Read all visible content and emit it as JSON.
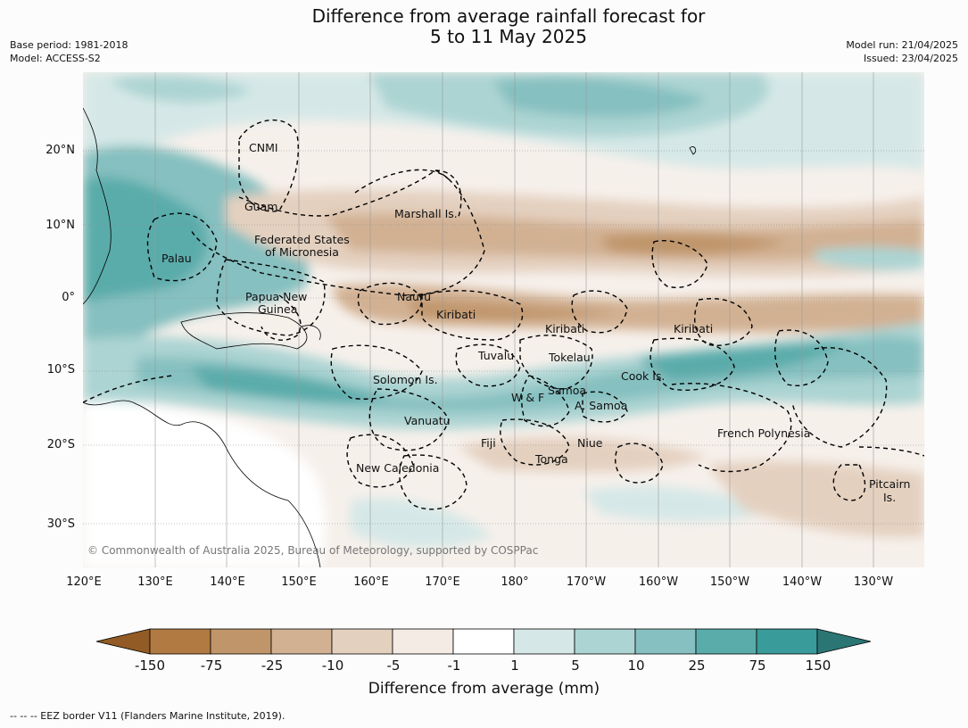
{
  "title_line1": "Difference from average rainfall forecast for",
  "title_line2": "5 to 11 May 2025",
  "base_period": "Base period: 1981-2018",
  "model": "Model: ACCESS-S2",
  "model_run": "Model run: 21/04/2025",
  "issued": "Issued: 23/04/2025",
  "lat_labels": [
    "20°N",
    "10°N",
    "0°",
    "10°S",
    "20°S",
    "30°S"
  ],
  "lon_labels": [
    "120°E",
    "130°E",
    "140°E",
    "150°E",
    "160°E",
    "170°E",
    "180°",
    "170°W",
    "160°W",
    "150°W",
    "140°W",
    "130°W"
  ],
  "regions": [
    "CNMI",
    "Guam",
    "Marshall Is.",
    "Federated States",
    "of Micronesia",
    "Palau",
    "Papua New",
    "Guinea",
    "Nauru",
    "Kiribati",
    "Kiribati",
    "Kiribati",
    "Tuvalu",
    "Tokelau",
    "Solomon Is.",
    "Cook Is.",
    "Samoa",
    "W & F",
    "A. Samoa",
    "Vanuatu",
    "Fiji",
    "Niue",
    "French Polynesia",
    "Tonga",
    "New Caledonia",
    "Pitcairn",
    "Is."
  ],
  "copyright": "© Commonwealth of Australia 2025, Bureau of Meteorology, supported by COSPPac",
  "colorbar": {
    "ticks": [
      "-150",
      "-75",
      "-25",
      "-10",
      "-5",
      "-1",
      "1",
      "5",
      "10",
      "25",
      "75",
      "150"
    ],
    "colors": [
      "#925b25",
      "#b07a42",
      "#c0956a",
      "#d2b193",
      "#e4d0bf",
      "#f3ebe4",
      "#ffffff",
      "#d5e8e7",
      "#acd4d3",
      "#86c0c0",
      "#5aacab",
      "#399b9a",
      "#2b7675"
    ],
    "title": "Difference from average (mm)"
  },
  "footnote": "--  --  -- EEZ border V11 (Flanders Marine Institute, 2019)."
}
